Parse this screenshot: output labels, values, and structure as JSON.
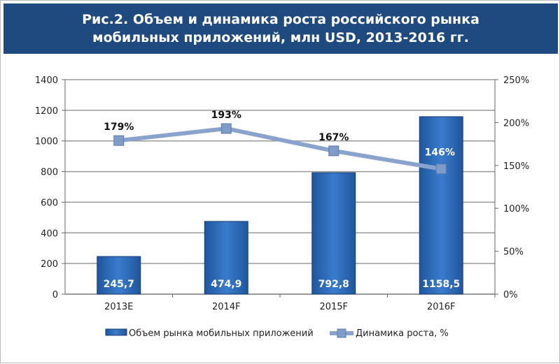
{
  "chart_data": {
    "type": "bar",
    "title": "Рис.2. Объем и динамика роста российского рынка мобильных приложений, млн USD, 2013-2016 гг.",
    "categories": [
      "2013E",
      "2014F",
      "2015F",
      "2016F"
    ],
    "series": [
      {
        "name": "Объем рынка мобильных приложений",
        "type": "bar",
        "axis": "left",
        "values": [
          245.7,
          474.9,
          792.8,
          1158.5
        ],
        "labels": [
          "245,7",
          "474,9",
          "792,8",
          "1158,5"
        ],
        "color": "#2e6bb8"
      },
      {
        "name": "Динамика роста, %",
        "type": "line",
        "axis": "right",
        "values": [
          179,
          193,
          167,
          146
        ],
        "labels": [
          "179%",
          "193%",
          "167%",
          "146%"
        ],
        "color": "#8aa3cc"
      }
    ],
    "ylim": [
      0,
      1400
    ],
    "yticks": [
      "0",
      "200",
      "400",
      "600",
      "800",
      "1000",
      "1200",
      "1400"
    ],
    "y2lim": [
      0,
      250
    ],
    "y2ticks": [
      "0%",
      "50%",
      "100%",
      "150%",
      "200%",
      "250%"
    ],
    "grid": true,
    "legend": "bottom"
  }
}
